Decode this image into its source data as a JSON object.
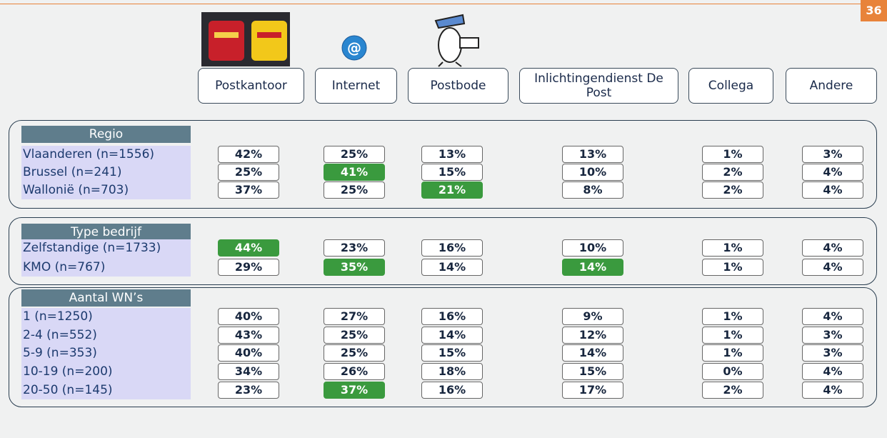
{
  "page_number": "36",
  "columns": [
    "Postkantoor",
    "Internet",
    "Postbode",
    "Inlichtingendienst De Post",
    "Collega",
    "Andere"
  ],
  "groups": [
    {
      "title": "Regio",
      "rows": [
        {
          "label": "Vlaanderen (n=1556)",
          "cells": [
            "42%",
            "25%",
            "13%",
            "13%",
            "1%",
            "3%"
          ],
          "highlight": []
        },
        {
          "label": "Brussel (n=241)",
          "cells": [
            "25%",
            "41%",
            "15%",
            "10%",
            "2%",
            "4%"
          ],
          "highlight": [
            1
          ]
        },
        {
          "label": "Wallonië (n=703)",
          "cells": [
            "37%",
            "25%",
            "21%",
            "8%",
            "2%",
            "4%"
          ],
          "highlight": [
            2
          ]
        }
      ]
    },
    {
      "title": "Type bedrijf",
      "rows": [
        {
          "label": "Zelfstandige (n=1733)",
          "cells": [
            "44%",
            "23%",
            "16%",
            "10%",
            "1%",
            "4%"
          ],
          "highlight": [
            0
          ]
        },
        {
          "label": "KMO (n=767)",
          "cells": [
            "29%",
            "35%",
            "14%",
            "14%",
            "1%",
            "4%"
          ],
          "highlight": [
            1,
            3
          ]
        }
      ]
    },
    {
      "title": "Aantal WN’s",
      "rows": [
        {
          "label": "1  (n=1250)",
          "cells": [
            "40%",
            "27%",
            "16%",
            "9%",
            "1%",
            "4%"
          ],
          "highlight": []
        },
        {
          "label": "2-4 (n=552)",
          "cells": [
            "43%",
            "25%",
            "14%",
            "12%",
            "1%",
            "3%"
          ],
          "highlight": []
        },
        {
          "label": "5-9 (n=353)",
          "cells": [
            "40%",
            "25%",
            "15%",
            "14%",
            "1%",
            "3%"
          ],
          "highlight": []
        },
        {
          "label": "10-19 (n=200)",
          "cells": [
            "34%",
            "26%",
            "18%",
            "15%",
            "0%",
            "4%"
          ],
          "highlight": []
        },
        {
          "label": "20-50 (n=145)",
          "cells": [
            "23%",
            "37%",
            "16%",
            "17%",
            "2%",
            "4%"
          ],
          "highlight": [
            1
          ]
        }
      ]
    }
  ]
}
